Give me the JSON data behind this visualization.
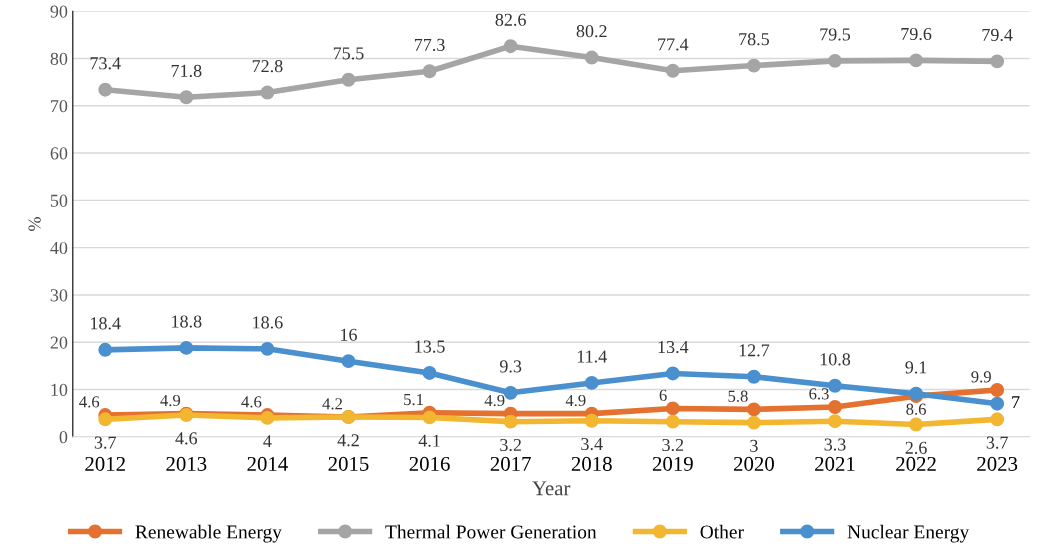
{
  "chart_data": {
    "type": "line",
    "xlabel": "Year",
    "ylabel": "%",
    "categories": [
      "2012",
      "2013",
      "2014",
      "2015",
      "2016",
      "2017",
      "2018",
      "2019",
      "2020",
      "2021",
      "2022",
      "2023"
    ],
    "series": [
      {
        "name": "Renewable Energy",
        "color": "#e4712f",
        "values": [
          4.6,
          4.9,
          4.6,
          4.2,
          5.1,
          4.9,
          4.9,
          6,
          5.8,
          6.3,
          8.6,
          9.9
        ]
      },
      {
        "name": "Thermal Power Generation",
        "color": "#a5a5a5",
        "values": [
          73.4,
          71.8,
          72.8,
          75.5,
          77.3,
          82.6,
          80.2,
          77.4,
          78.5,
          79.5,
          79.6,
          79.4
        ]
      },
      {
        "name": "Other",
        "color": "#f2b631",
        "values": [
          3.7,
          4.6,
          4,
          4.2,
          4.1,
          3.2,
          3.4,
          3.2,
          3,
          3.3,
          2.6,
          3.7
        ]
      },
      {
        "name": "Nuclear Energy",
        "color": "#4a90cf",
        "values": [
          18.4,
          18.8,
          18.6,
          16,
          13.5,
          9.3,
          11.4,
          13.4,
          12.7,
          10.8,
          9.1,
          7
        ]
      }
    ],
    "ylim": [
      0,
      90
    ],
    "yticks": [
      0,
      10,
      20,
      30,
      40,
      50,
      60,
      70,
      80,
      90
    ],
    "grid": "y",
    "legend": "bottom",
    "marker": "circle",
    "line_style": "solid",
    "data_labels": true
  }
}
